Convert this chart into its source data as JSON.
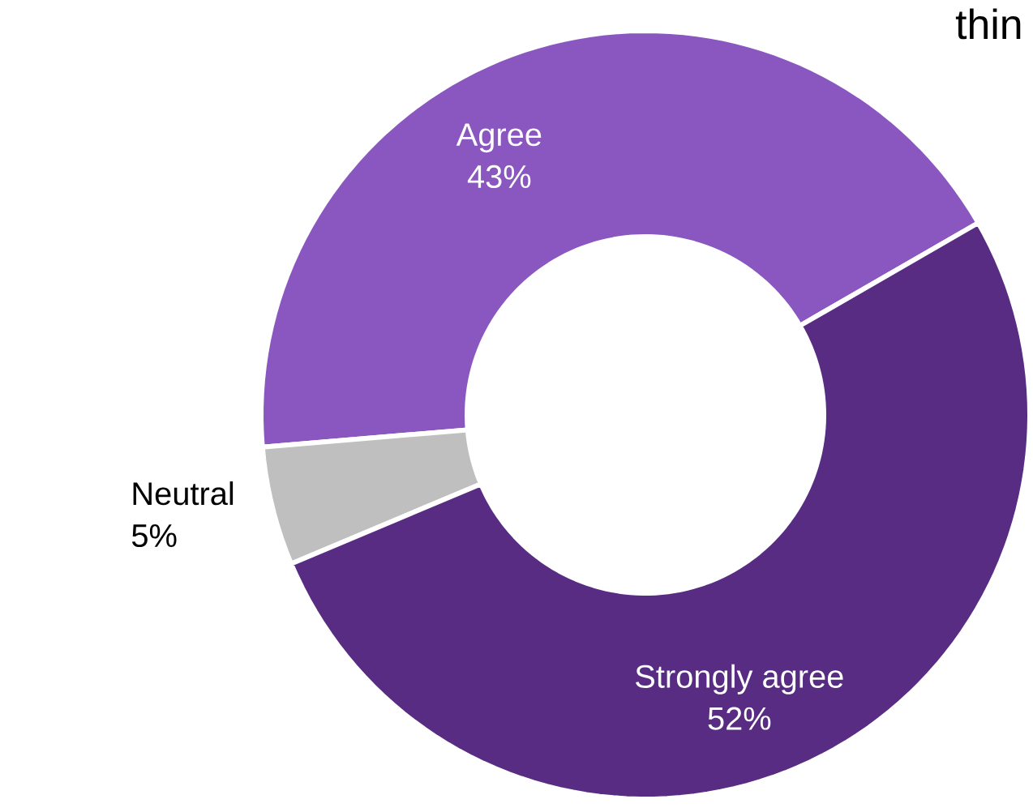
{
  "chart_data": {
    "type": "donut",
    "categories": [
      "Agree",
      "Neutral",
      "Strongly agree"
    ],
    "values": [
      43,
      5,
      52
    ],
    "value_labels": [
      "43%",
      "5%",
      "52%"
    ],
    "colors": [
      "#8a57c0",
      "#bfbfbf",
      "#582c83"
    ],
    "annotations": [
      "thin"
    ]
  }
}
